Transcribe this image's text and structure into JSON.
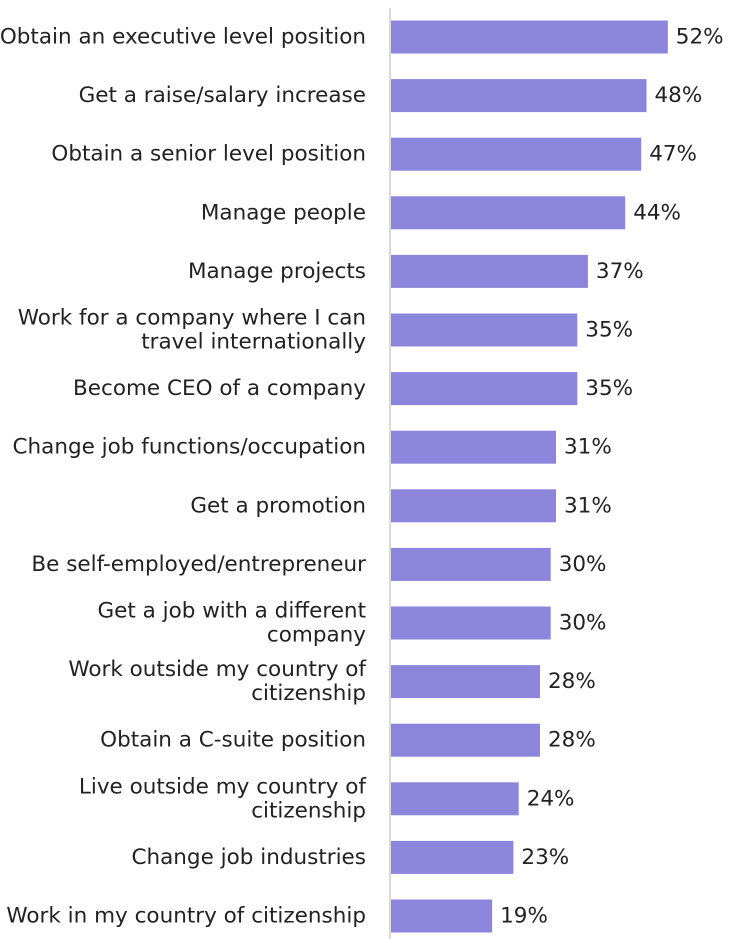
{
  "chart_data": {
    "type": "bar",
    "orientation": "horizontal",
    "categories": [
      "Obtain an executive level position",
      "Get a raise/salary increase",
      "Obtain a senior level position",
      "Manage people",
      "Manage projects",
      "Work for a company where I can travel internationally",
      "Become CEO of a company",
      "Change job functions/occupation",
      "Get a promotion",
      "Be self-employed/entrepreneur",
      "Get a job with a different company",
      "Work outside my country of citizenship",
      "Obtain a C-suite position",
      "Live outside my country of citizenship",
      "Change job industries",
      "Work in my country of citizenship"
    ],
    "category_lines": [
      [
        "Obtain an executive level position"
      ],
      [
        "Get a raise/salary increase"
      ],
      [
        "Obtain a senior level position"
      ],
      [
        "Manage people"
      ],
      [
        "Manage projects"
      ],
      [
        "Work for a company where I can",
        "travel internationally"
      ],
      [
        "Become CEO of a company"
      ],
      [
        "Change job functions/occupation"
      ],
      [
        "Get a promotion"
      ],
      [
        "Be self-employed/entrepreneur"
      ],
      [
        "Get a job with a different",
        "company"
      ],
      [
        "Work outside my country of",
        "citizenship"
      ],
      [
        "Obtain a C-suite position"
      ],
      [
        "Live outside my country of",
        "citizenship"
      ],
      [
        "Change job industries"
      ],
      [
        "Work in my country of citizenship"
      ]
    ],
    "values": [
      52,
      48,
      47,
      44,
      37,
      35,
      35,
      31,
      31,
      30,
      30,
      28,
      28,
      24,
      23,
      19
    ],
    "value_labels": [
      "52%",
      "48%",
      "47%",
      "44%",
      "37%",
      "35%",
      "35%",
      "31%",
      "31%",
      "30%",
      "30%",
      "28%",
      "28%",
      "24%",
      "23%",
      "19%"
    ],
    "unit": "%",
    "xlim": [
      0,
      62
    ],
    "title": "",
    "xlabel": "",
    "ylabel": "",
    "grid": false,
    "legend": "none",
    "bar_color": "#8b85db",
    "axis_color": "#d9d9d9",
    "text_color": "#222222"
  }
}
